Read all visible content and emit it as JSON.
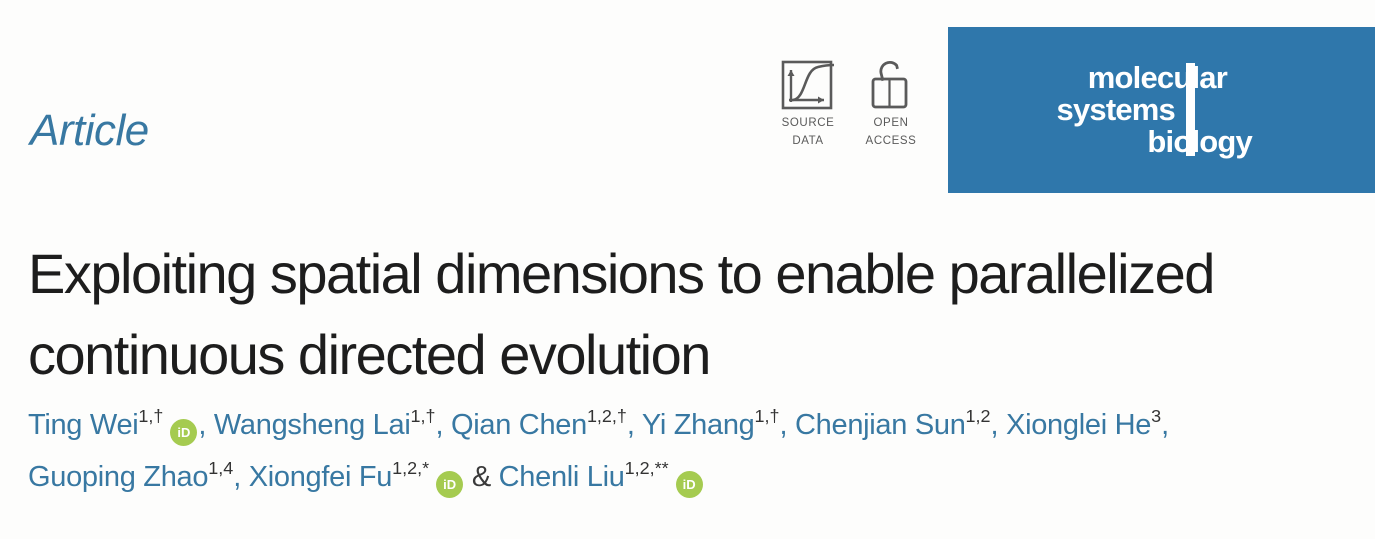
{
  "kicker": {
    "label": "Article"
  },
  "badges": {
    "source_data": {
      "line1": "SOURCE",
      "line2": "DATA"
    },
    "open_access": {
      "line1": "OPEN",
      "line2": "ACCESS"
    }
  },
  "logo": {
    "line1": "molecular",
    "line2": "systems",
    "line3": "biology"
  },
  "title": {
    "line1": "Exploiting spatial dimensions to enable parallelized",
    "line2": "continuous directed evolution"
  },
  "orcid": {
    "label": "iD"
  },
  "authors": [
    {
      "name": "Ting Wei",
      "affiliations": "1,†",
      "orcid": true
    },
    {
      "name": "Wangsheng Lai",
      "affiliations": "1,†"
    },
    {
      "name": "Qian Chen",
      "affiliations": "1,2,†"
    },
    {
      "name": "Yi Zhang",
      "affiliations": "1,†"
    },
    {
      "name": "Chenjian Sun",
      "affiliations": "1,2"
    },
    {
      "name": "Xionglei He",
      "affiliations": "3",
      "break_after": true
    },
    {
      "name": "Guoping Zhao",
      "affiliations": "1,4"
    },
    {
      "name": "Xiongfei Fu",
      "affiliations": "1,2,*",
      "orcid": true
    },
    {
      "name": "Chenli Liu",
      "affiliations": "1,2,**",
      "orcid": true,
      "amp_before": true
    }
  ],
  "colors": {
    "accent_blue": "#2f77ab",
    "author_blue": "#3878a2",
    "orcid_green": "#a5cb50",
    "title_black": "#1d1d1d",
    "badge_gray": "#5a5a5a"
  }
}
